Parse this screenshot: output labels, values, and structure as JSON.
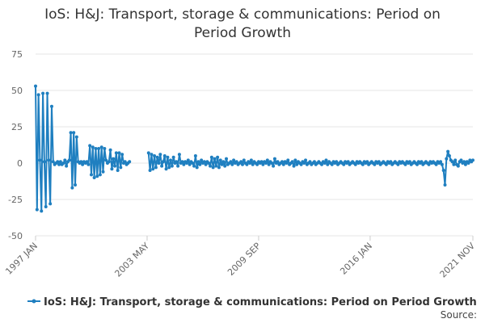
{
  "title_line1": "IoS: H&J: Transport, storage & communications: Period on",
  "title_line2": "Period Growth",
  "source_label": "Source:",
  "chart_data": {
    "type": "line",
    "title": "IoS: H&J: Transport, storage & communications: Period on Period Growth",
    "ylim": [
      -50,
      75
    ],
    "yticks": [
      75,
      50,
      25,
      0,
      -25,
      -50
    ],
    "xlim": [
      "1997-01",
      "2021-11"
    ],
    "xticks": [
      "1997 JAN",
      "2003 MAY",
      "2009 SEP",
      "2016 JAN",
      "2021 NOV"
    ],
    "grid": true,
    "legend_position": "bottom",
    "series": [
      {
        "name": "IoS: H&J: Transport, storage & communications: Period on Period Growth",
        "color": "#1f7fc0",
        "points": [
          [
            "1997-01",
            53
          ],
          [
            "1997-02",
            -32
          ],
          [
            "1997-03",
            47
          ],
          [
            "1997-04",
            2
          ],
          [
            "1997-05",
            -33
          ],
          [
            "1997-06",
            48
          ],
          [
            "1997-07",
            1
          ],
          [
            "1997-08",
            -30
          ],
          [
            "1997-09",
            48
          ],
          [
            "1997-10",
            2
          ],
          [
            "1997-11",
            -28
          ],
          [
            "1997-12",
            39
          ],
          [
            "1998-01",
            1
          ],
          [
            "1998-02",
            -1
          ],
          [
            "1998-03",
            0
          ],
          [
            "1998-04",
            1
          ],
          [
            "1998-05",
            -1
          ],
          [
            "1998-06",
            1
          ],
          [
            "1998-07",
            -1
          ],
          [
            "1998-08",
            0
          ],
          [
            "1998-09",
            2
          ],
          [
            "1998-10",
            -2
          ],
          [
            "1998-11",
            1
          ],
          [
            "1998-12",
            2
          ],
          [
            "1999-01",
            21
          ],
          [
            "1999-02",
            -17
          ],
          [
            "1999-03",
            21
          ],
          [
            "1999-04",
            -15
          ],
          [
            "1999-05",
            18
          ],
          [
            "1999-06",
            1
          ],
          [
            "1999-07",
            0
          ],
          [
            "1999-08",
            1
          ],
          [
            "1999-09",
            -1
          ],
          [
            "1999-10",
            1
          ],
          [
            "1999-11",
            0
          ],
          [
            "1999-12",
            1
          ],
          [
            "2000-01",
            -1
          ],
          [
            "2000-02",
            12
          ],
          [
            "2000-03",
            -8
          ],
          [
            "2000-04",
            11
          ],
          [
            "2000-05",
            -10
          ],
          [
            "2000-06",
            10
          ],
          [
            "2000-07",
            -9
          ],
          [
            "2000-08",
            10
          ],
          [
            "2000-09",
            -8
          ],
          [
            "2000-10",
            11
          ],
          [
            "2000-11",
            -6
          ],
          [
            "2000-12",
            10
          ],
          [
            "2001-01",
            2
          ],
          [
            "2001-02",
            0
          ],
          [
            "2001-03",
            1
          ],
          [
            "2001-04",
            9
          ],
          [
            "2001-05",
            -4
          ],
          [
            "2001-06",
            3
          ],
          [
            "2001-07",
            -2
          ],
          [
            "2001-08",
            7
          ],
          [
            "2001-09",
            -5
          ],
          [
            "2001-10",
            7
          ],
          [
            "2001-11",
            -3
          ],
          [
            "2001-12",
            6
          ],
          [
            "2002-01",
            0
          ],
          [
            "2002-02",
            1
          ],
          [
            "2002-03",
            -1
          ],
          [
            "2002-04",
            0
          ],
          [
            "2002-05",
            1
          ],
          [
            "2003-06",
            7
          ],
          [
            "2003-07",
            -5
          ],
          [
            "2003-08",
            6
          ],
          [
            "2003-09",
            -4
          ],
          [
            "2003-10",
            5
          ],
          [
            "2003-11",
            -3
          ],
          [
            "2003-12",
            4
          ],
          [
            "2004-01",
            0
          ],
          [
            "2004-02",
            6
          ],
          [
            "2004-03",
            -2
          ],
          [
            "2004-04",
            1
          ],
          [
            "2004-05",
            5
          ],
          [
            "2004-06",
            -4
          ],
          [
            "2004-07",
            4
          ],
          [
            "2004-08",
            -3
          ],
          [
            "2004-09",
            2
          ],
          [
            "2004-10",
            -2
          ],
          [
            "2004-11",
            4
          ],
          [
            "2004-12",
            0
          ],
          [
            "2005-01",
            1
          ],
          [
            "2005-02",
            -2
          ],
          [
            "2005-03",
            6
          ],
          [
            "2005-04",
            0
          ],
          [
            "2005-05",
            1
          ],
          [
            "2005-06",
            -1
          ],
          [
            "2005-07",
            1
          ],
          [
            "2005-08",
            0
          ],
          [
            "2005-09",
            2
          ],
          [
            "2005-10",
            -1
          ],
          [
            "2005-11",
            1
          ],
          [
            "2005-12",
            0
          ],
          [
            "2006-01",
            -2
          ],
          [
            "2006-02",
            5
          ],
          [
            "2006-03",
            -3
          ],
          [
            "2006-04",
            1
          ],
          [
            "2006-05",
            -1
          ],
          [
            "2006-06",
            2
          ],
          [
            "2006-07",
            0
          ],
          [
            "2006-08",
            1
          ],
          [
            "2006-09",
            -1
          ],
          [
            "2006-10",
            1
          ],
          [
            "2006-11",
            0
          ],
          [
            "2006-12",
            -2
          ],
          [
            "2007-01",
            4
          ],
          [
            "2007-02",
            -3
          ],
          [
            "2007-03",
            3
          ],
          [
            "2007-04",
            -2
          ],
          [
            "2007-05",
            4
          ],
          [
            "2007-06",
            -3
          ],
          [
            "2007-07",
            2
          ],
          [
            "2007-08",
            -1
          ],
          [
            "2007-09",
            1
          ],
          [
            "2007-10",
            -2
          ],
          [
            "2007-11",
            3
          ],
          [
            "2007-12",
            -1
          ],
          [
            "2008-01",
            0
          ],
          [
            "2008-02",
            1
          ],
          [
            "2008-03",
            -1
          ],
          [
            "2008-04",
            2
          ],
          [
            "2008-05",
            0
          ],
          [
            "2008-06",
            1
          ],
          [
            "2008-07",
            -1
          ],
          [
            "2008-08",
            0
          ],
          [
            "2008-09",
            1
          ],
          [
            "2008-10",
            -1
          ],
          [
            "2008-11",
            2
          ],
          [
            "2008-12",
            0
          ],
          [
            "2009-01",
            -1
          ],
          [
            "2009-02",
            1
          ],
          [
            "2009-03",
            0
          ],
          [
            "2009-04",
            2
          ],
          [
            "2009-05",
            -1
          ],
          [
            "2009-06",
            1
          ],
          [
            "2009-07",
            0
          ],
          [
            "2009-08",
            -1
          ],
          [
            "2009-09",
            1
          ],
          [
            "2009-10",
            0
          ],
          [
            "2009-11",
            1
          ],
          [
            "2009-12",
            -1
          ],
          [
            "2010-01",
            1
          ],
          [
            "2010-02",
            0
          ],
          [
            "2010-03",
            2
          ],
          [
            "2010-04",
            -1
          ],
          [
            "2010-05",
            1
          ],
          [
            "2010-06",
            0
          ],
          [
            "2010-07",
            -2
          ],
          [
            "2010-08",
            3
          ],
          [
            "2010-09",
            0
          ],
          [
            "2010-10",
            1
          ],
          [
            "2010-11",
            -1
          ],
          [
            "2010-12",
            0
          ],
          [
            "2011-01",
            1
          ],
          [
            "2011-02",
            -1
          ],
          [
            "2011-03",
            1
          ],
          [
            "2011-04",
            0
          ],
          [
            "2011-05",
            2
          ],
          [
            "2011-06",
            -1
          ],
          [
            "2011-07",
            0
          ],
          [
            "2011-08",
            1
          ],
          [
            "2011-09",
            -2
          ],
          [
            "2011-10",
            2
          ],
          [
            "2011-11",
            -1
          ],
          [
            "2011-12",
            1
          ],
          [
            "2012-01",
            0
          ],
          [
            "2012-02",
            -1
          ],
          [
            "2012-03",
            1
          ],
          [
            "2012-04",
            0
          ],
          [
            "2012-05",
            2
          ],
          [
            "2012-06",
            -1
          ],
          [
            "2012-07",
            0
          ],
          [
            "2012-08",
            1
          ],
          [
            "2012-09",
            -1
          ],
          [
            "2012-10",
            0
          ],
          [
            "2012-11",
            1
          ],
          [
            "2012-12",
            -1
          ],
          [
            "2013-01",
            0
          ],
          [
            "2013-02",
            1
          ],
          [
            "2013-03",
            0
          ],
          [
            "2013-04",
            -1
          ],
          [
            "2013-05",
            1
          ],
          [
            "2013-06",
            0
          ],
          [
            "2013-07",
            2
          ],
          [
            "2013-08",
            -1
          ],
          [
            "2013-09",
            1
          ],
          [
            "2013-10",
            0
          ],
          [
            "2013-11",
            -1
          ],
          [
            "2013-12",
            1
          ],
          [
            "2014-01",
            0
          ],
          [
            "2014-02",
            1
          ],
          [
            "2014-03",
            -1
          ],
          [
            "2014-04",
            0
          ],
          [
            "2014-05",
            1
          ],
          [
            "2014-06",
            0
          ],
          [
            "2014-07",
            -1
          ],
          [
            "2014-08",
            1
          ],
          [
            "2014-09",
            0
          ],
          [
            "2014-10",
            1
          ],
          [
            "2014-11",
            -1
          ],
          [
            "2014-12",
            0
          ],
          [
            "2015-01",
            1
          ],
          [
            "2015-02",
            0
          ],
          [
            "2015-03",
            -1
          ],
          [
            "2015-04",
            1
          ],
          [
            "2015-05",
            0
          ],
          [
            "2015-06",
            1
          ],
          [
            "2015-07",
            0
          ],
          [
            "2015-08",
            -1
          ],
          [
            "2015-09",
            1
          ],
          [
            "2015-10",
            0
          ],
          [
            "2015-11",
            1
          ],
          [
            "2015-12",
            -1
          ],
          [
            "2016-01",
            0
          ],
          [
            "2016-02",
            1
          ],
          [
            "2016-03",
            0
          ],
          [
            "2016-04",
            -1
          ],
          [
            "2016-05",
            1
          ],
          [
            "2016-06",
            0
          ],
          [
            "2016-07",
            1
          ],
          [
            "2016-08",
            -1
          ],
          [
            "2016-09",
            0
          ],
          [
            "2016-10",
            1
          ],
          [
            "2016-11",
            0
          ],
          [
            "2016-12",
            -1
          ],
          [
            "2017-01",
            1
          ],
          [
            "2017-02",
            0
          ],
          [
            "2017-03",
            1
          ],
          [
            "2017-04",
            -1
          ],
          [
            "2017-05",
            0
          ],
          [
            "2017-06",
            1
          ],
          [
            "2017-07",
            0
          ],
          [
            "2017-08",
            -1
          ],
          [
            "2017-09",
            1
          ],
          [
            "2017-10",
            0
          ],
          [
            "2017-11",
            1
          ],
          [
            "2017-12",
            0
          ],
          [
            "2018-01",
            -1
          ],
          [
            "2018-02",
            1
          ],
          [
            "2018-03",
            0
          ],
          [
            "2018-04",
            1
          ],
          [
            "2018-05",
            -1
          ],
          [
            "2018-06",
            0
          ],
          [
            "2018-07",
            1
          ],
          [
            "2018-08",
            0
          ],
          [
            "2018-09",
            -1
          ],
          [
            "2018-10",
            1
          ],
          [
            "2018-11",
            0
          ],
          [
            "2018-12",
            1
          ],
          [
            "2019-01",
            -1
          ],
          [
            "2019-02",
            0
          ],
          [
            "2019-03",
            1
          ],
          [
            "2019-04",
            0
          ],
          [
            "2019-05",
            -1
          ],
          [
            "2019-06",
            1
          ],
          [
            "2019-07",
            0
          ],
          [
            "2019-08",
            1
          ],
          [
            "2019-09",
            0
          ],
          [
            "2019-10",
            -1
          ],
          [
            "2019-11",
            1
          ],
          [
            "2019-12",
            0
          ],
          [
            "2020-01",
            1
          ],
          [
            "2020-02",
            -1
          ],
          [
            "2020-03",
            -5
          ],
          [
            "2020-04",
            -15
          ],
          [
            "2020-05",
            3
          ],
          [
            "2020-06",
            8
          ],
          [
            "2020-07",
            5
          ],
          [
            "2020-08",
            2
          ],
          [
            "2020-09",
            1
          ],
          [
            "2020-10",
            -1
          ],
          [
            "2020-11",
            2
          ],
          [
            "2020-12",
            -1
          ],
          [
            "2021-01",
            -2
          ],
          [
            "2021-02",
            1
          ],
          [
            "2021-03",
            2
          ],
          [
            "2021-04",
            0
          ],
          [
            "2021-05",
            1
          ],
          [
            "2021-06",
            -1
          ],
          [
            "2021-07",
            1
          ],
          [
            "2021-08",
            0
          ],
          [
            "2021-09",
            2
          ],
          [
            "2021-10",
            1
          ],
          [
            "2021-11",
            2
          ]
        ]
      }
    ]
  }
}
